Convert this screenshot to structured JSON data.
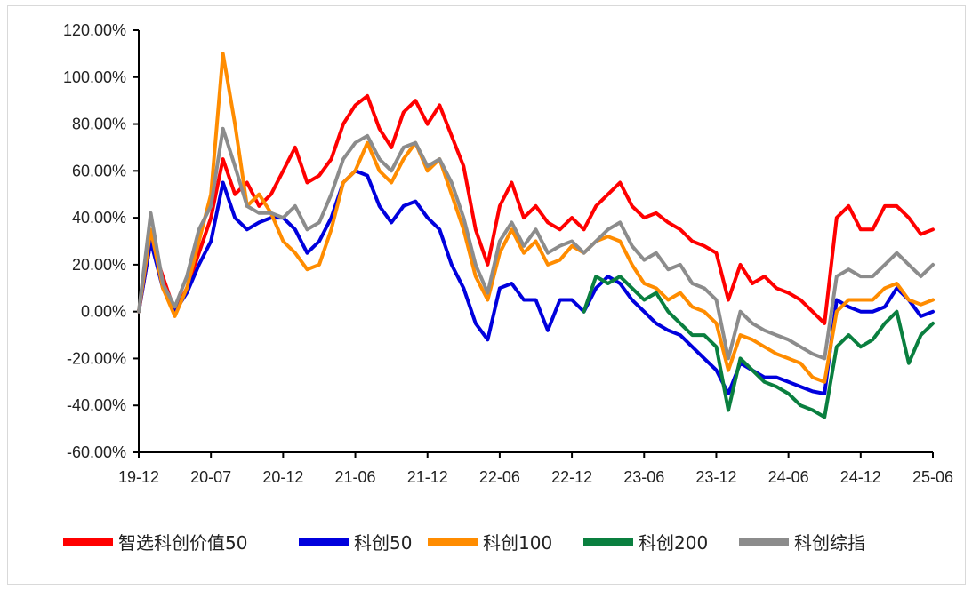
{
  "chart_data": {
    "type": "line",
    "title": "",
    "xlabel": "",
    "ylabel": "",
    "ylim": [
      -60,
      120
    ],
    "y_ticks": [
      120,
      100,
      80,
      60,
      40,
      20,
      0,
      -20,
      -40,
      -60
    ],
    "y_tick_labels": [
      "120.00%",
      "100.00%",
      "80.00%",
      "60.00%",
      "40.00%",
      "20.00%",
      "0.00%",
      "-20.00%",
      "-40.00%",
      "-60.00%"
    ],
    "x_ticks": [
      "19-12",
      "20-07",
      "20-12",
      "21-06",
      "21-12",
      "22-06",
      "22-12",
      "23-06",
      "23-12",
      "24-06",
      "24-12",
      "25-06"
    ],
    "x_range": [
      "2019-12",
      "2025-06"
    ],
    "grid": false,
    "legend_position": "bottom",
    "series": [
      {
        "name": "智选科创价值50",
        "color": "#ff0000",
        "x": [
          "2019-12",
          "2020-01",
          "2020-02",
          "2020-03",
          "2020-04",
          "2020-05",
          "2020-06",
          "2020-07",
          "2020-08",
          "2020-09",
          "2020-10",
          "2020-11",
          "2020-12",
          "2021-01",
          "2021-02",
          "2021-03",
          "2021-04",
          "2021-05",
          "2021-06",
          "2021-07",
          "2021-08",
          "2021-09",
          "2021-10",
          "2021-11",
          "2021-12",
          "2022-01",
          "2022-02",
          "2022-03",
          "2022-04",
          "2022-05",
          "2022-06",
          "2022-07",
          "2022-08",
          "2022-09",
          "2022-10",
          "2022-11",
          "2022-12",
          "2023-01",
          "2023-02",
          "2023-03",
          "2023-04",
          "2023-05",
          "2023-06",
          "2023-07",
          "2023-08",
          "2023-09",
          "2023-10",
          "2023-11",
          "2023-12",
          "2024-01",
          "2024-02",
          "2024-03",
          "2024-04",
          "2024-05",
          "2024-06",
          "2024-07",
          "2024-08",
          "2024-09",
          "2024-10",
          "2024-11",
          "2024-12",
          "2025-01",
          "2025-02",
          "2025-03",
          "2025-04",
          "2025-05",
          "2025-06"
        ],
        "values": [
          0,
          30,
          15,
          0,
          10,
          25,
          40,
          65,
          50,
          55,
          45,
          50,
          60,
          70,
          55,
          58,
          65,
          80,
          88,
          92,
          78,
          70,
          85,
          90,
          80,
          88,
          75,
          62,
          35,
          20,
          45,
          55,
          40,
          45,
          38,
          35,
          40,
          35,
          45,
          50,
          55,
          45,
          40,
          42,
          38,
          35,
          30,
          28,
          25,
          5,
          20,
          12,
          15,
          10,
          8,
          5,
          0,
          -5,
          40,
          45,
          35,
          35,
          45,
          45,
          40,
          33,
          35
        ]
      },
      {
        "name": "科创50",
        "color": "#0000dd",
        "x": [
          "2019-12",
          "2020-01",
          "2020-02",
          "2020-03",
          "2020-04",
          "2020-05",
          "2020-06",
          "2020-07",
          "2020-08",
          "2020-09",
          "2020-10",
          "2020-11",
          "2020-12",
          "2021-01",
          "2021-02",
          "2021-03",
          "2021-04",
          "2021-05",
          "2021-06",
          "2021-07",
          "2021-08",
          "2021-09",
          "2021-10",
          "2021-11",
          "2021-12",
          "2022-01",
          "2022-02",
          "2022-03",
          "2022-04",
          "2022-05",
          "2022-06",
          "2022-07",
          "2022-08",
          "2022-09",
          "2022-10",
          "2022-11",
          "2022-12",
          "2023-01",
          "2023-02",
          "2023-03",
          "2023-04",
          "2023-05",
          "2023-06",
          "2023-07",
          "2023-08",
          "2023-09",
          "2023-10",
          "2023-11",
          "2023-12",
          "2024-01",
          "2024-02",
          "2024-03",
          "2024-04",
          "2024-05",
          "2024-06",
          "2024-07",
          "2024-08",
          "2024-09",
          "2024-10",
          "2024-11",
          "2024-12",
          "2025-01",
          "2025-02",
          "2025-03",
          "2025-04",
          "2025-05",
          "2025-06"
        ],
        "values": [
          0,
          30,
          10,
          0,
          8,
          20,
          30,
          55,
          40,
          35,
          38,
          40,
          40,
          35,
          25,
          30,
          40,
          55,
          60,
          58,
          45,
          38,
          45,
          47,
          40,
          35,
          20,
          10,
          -5,
          -12,
          10,
          12,
          5,
          5,
          -8,
          5,
          5,
          0,
          10,
          15,
          12,
          5,
          0,
          -5,
          -8,
          -10,
          -15,
          -20,
          -25,
          -35,
          -22,
          -25,
          -28,
          -28,
          -30,
          -32,
          -34,
          -35,
          5,
          2,
          0,
          0,
          2,
          10,
          5,
          -2,
          0
        ]
      },
      {
        "name": "科创100",
        "color": "#ff8c00",
        "x": [
          "2019-12",
          "2020-01",
          "2020-02",
          "2020-03",
          "2020-04",
          "2020-05",
          "2020-06",
          "2020-07",
          "2020-08",
          "2020-09",
          "2020-10",
          "2020-11",
          "2020-12",
          "2021-01",
          "2021-02",
          "2021-03",
          "2021-04",
          "2021-05",
          "2021-06",
          "2021-07",
          "2021-08",
          "2021-09",
          "2021-10",
          "2021-11",
          "2021-12",
          "2022-01",
          "2022-02",
          "2022-03",
          "2022-04",
          "2022-05",
          "2022-06",
          "2022-07",
          "2022-08",
          "2022-09",
          "2022-10",
          "2022-11",
          "2022-12",
          "2023-01",
          "2023-02",
          "2023-03",
          "2023-04",
          "2023-05",
          "2023-06",
          "2023-07",
          "2023-08",
          "2023-09",
          "2023-10",
          "2023-11",
          "2023-12",
          "2024-01",
          "2024-02",
          "2024-03",
          "2024-04",
          "2024-05",
          "2024-06",
          "2024-07",
          "2024-08",
          "2024-09",
          "2024-10",
          "2024-11",
          "2024-12",
          "2025-01",
          "2025-02",
          "2025-03",
          "2025-04",
          "2025-05",
          "2025-06"
        ],
        "values": [
          0,
          35,
          10,
          -2,
          10,
          30,
          50,
          110,
          80,
          45,
          50,
          42,
          30,
          25,
          18,
          20,
          35,
          55,
          60,
          72,
          60,
          55,
          65,
          72,
          60,
          65,
          50,
          35,
          15,
          5,
          25,
          35,
          25,
          30,
          20,
          22,
          28,
          25,
          30,
          32,
          30,
          20,
          12,
          10,
          5,
          8,
          2,
          0,
          -5,
          -25,
          -10,
          -12,
          -15,
          -18,
          -20,
          -22,
          -28,
          -30,
          0,
          5,
          5,
          5,
          10,
          12,
          5,
          3,
          5
        ]
      },
      {
        "name": "科创200",
        "color": "#0a7f3f",
        "x": [
          "2023-01",
          "2023-02",
          "2023-03",
          "2023-04",
          "2023-05",
          "2023-06",
          "2023-07",
          "2023-08",
          "2023-09",
          "2023-10",
          "2023-11",
          "2023-12",
          "2024-01",
          "2024-02",
          "2024-03",
          "2024-04",
          "2024-05",
          "2024-06",
          "2024-07",
          "2024-08",
          "2024-09",
          "2024-10",
          "2024-11",
          "2024-12",
          "2025-01",
          "2025-02",
          "2025-03",
          "2025-04",
          "2025-05",
          "2025-06"
        ],
        "values": [
          0,
          15,
          12,
          15,
          10,
          5,
          8,
          0,
          -5,
          -10,
          -10,
          -15,
          -42,
          -20,
          -25,
          -30,
          -32,
          -35,
          -40,
          -42,
          -45,
          -15,
          -10,
          -15,
          -12,
          -5,
          0,
          -22,
          -10,
          -5
        ]
      },
      {
        "name": "科创综指",
        "color": "#8c8c8c",
        "x": [
          "2019-12",
          "2020-01",
          "2020-02",
          "2020-03",
          "2020-04",
          "2020-05",
          "2020-06",
          "2020-07",
          "2020-08",
          "2020-09",
          "2020-10",
          "2020-11",
          "2020-12",
          "2021-01",
          "2021-02",
          "2021-03",
          "2021-04",
          "2021-05",
          "2021-06",
          "2021-07",
          "2021-08",
          "2021-09",
          "2021-10",
          "2021-11",
          "2021-12",
          "2022-01",
          "2022-02",
          "2022-03",
          "2022-04",
          "2022-05",
          "2022-06",
          "2022-07",
          "2022-08",
          "2022-09",
          "2022-10",
          "2022-11",
          "2022-12",
          "2023-01",
          "2023-02",
          "2023-03",
          "2023-04",
          "2023-05",
          "2023-06",
          "2023-07",
          "2023-08",
          "2023-09",
          "2023-10",
          "2023-11",
          "2023-12",
          "2024-01",
          "2024-02",
          "2024-03",
          "2024-04",
          "2024-05",
          "2024-06",
          "2024-07",
          "2024-08",
          "2024-09",
          "2024-10",
          "2024-11",
          "2024-12",
          "2025-01",
          "2025-02",
          "2025-03",
          "2025-04",
          "2025-05",
          "2025-06"
        ],
        "values": [
          0,
          42,
          12,
          2,
          15,
          35,
          45,
          78,
          62,
          45,
          42,
          42,
          40,
          45,
          35,
          38,
          50,
          65,
          72,
          75,
          65,
          60,
          70,
          72,
          62,
          65,
          55,
          40,
          20,
          8,
          30,
          38,
          28,
          35,
          25,
          28,
          30,
          25,
          30,
          35,
          38,
          28,
          22,
          25,
          18,
          20,
          12,
          10,
          5,
          -20,
          0,
          -5,
          -8,
          -10,
          -12,
          -15,
          -18,
          -20,
          15,
          18,
          15,
          15,
          20,
          25,
          20,
          15,
          20
        ]
      }
    ]
  }
}
